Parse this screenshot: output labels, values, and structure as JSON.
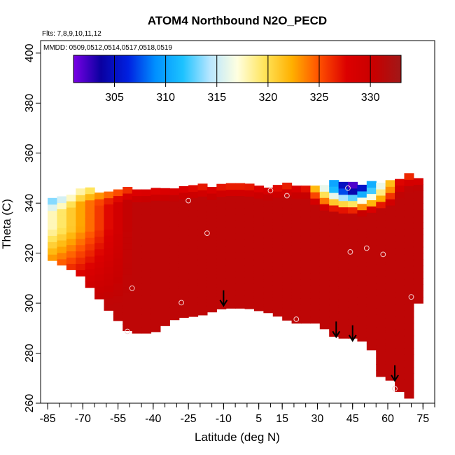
{
  "chart_data": {
    "type": "heatmap",
    "title": "ATOM4 Northbound N2O_PECD",
    "flights_label": "Flts: 7,8,9,10,11,12",
    "mmdd_label": "MMDD: 0509,0512,0514,0517,0518,0519",
    "xlabel": "Latitude (deg N)",
    "ylabel": "Theta (C)",
    "xlim": [
      -88,
      80
    ],
    "ylim": [
      260,
      405
    ],
    "x_ticks": [
      "-85",
      "-70",
      "-55",
      "-40",
      "-25",
      "-10",
      "5",
      "15",
      "30",
      "45",
      "60",
      "75"
    ],
    "x_tick_values": [
      -85,
      -70,
      -55,
      -40,
      -25,
      -10,
      5,
      15,
      30,
      45,
      60,
      75
    ],
    "y_ticks": [
      "260",
      "280",
      "300",
      "320",
      "340",
      "360",
      "380",
      "400"
    ],
    "y_tick_values": [
      260,
      280,
      300,
      320,
      340,
      360,
      380,
      400
    ],
    "colorbar": {
      "range": [
        301,
        333
      ],
      "ticks": [
        "305",
        "310",
        "315",
        "320",
        "325",
        "330"
      ],
      "tick_values": [
        305,
        310,
        315,
        320,
        325,
        330
      ],
      "colors": [
        "#7a00e6",
        "#0a00a0",
        "#0020e0",
        "#0090ff",
        "#1cc2ff",
        "#b8e6ff",
        "#ffffe0",
        "#ffe45a",
        "#ffb000",
        "#ff5000",
        "#dc0000",
        "#c80000",
        "#a01818"
      ]
    },
    "field": {
      "base_value": 331,
      "top_curtain_lat": [
        -82,
        -70,
        -55,
        -40,
        -25,
        -10,
        5,
        15,
        30,
        45,
        60,
        71
      ],
      "top_curtain_theta": [
        340,
        344,
        344,
        345,
        346,
        346,
        346,
        346,
        347,
        347,
        348,
        350
      ],
      "bottom_curtain_lat": [
        -85,
        -72,
        -58,
        -50,
        -40,
        -30,
        -20,
        -10,
        0,
        10,
        20,
        30,
        38,
        45,
        52,
        58,
        63,
        66,
        70,
        72
      ],
      "bottom_curtain_theta": [
        318,
        312,
        296,
        288,
        288,
        294,
        295,
        298,
        298,
        296,
        292,
        292,
        286,
        286,
        284,
        268,
        270,
        262,
        262,
        300
      ]
    },
    "sample_points": [
      {
        "lat": -51,
        "theta": 288.7
      },
      {
        "lat": -49,
        "theta": 306
      },
      {
        "lat": -28,
        "theta": 300.2
      },
      {
        "lat": -25,
        "theta": 341
      },
      {
        "lat": -17,
        "theta": 328
      },
      {
        "lat": 10,
        "theta": 345
      },
      {
        "lat": 17,
        "theta": 343
      },
      {
        "lat": 21,
        "theta": 293.6
      },
      {
        "lat": 43,
        "theta": 346
      },
      {
        "lat": 44,
        "theta": 320.5
      },
      {
        "lat": 51,
        "theta": 322
      },
      {
        "lat": 58,
        "theta": 319.5
      },
      {
        "lat": 70,
        "theta": 302.5
      },
      {
        "lat": 63,
        "theta": 265.8
      }
    ],
    "arrows": [
      {
        "lat": -10,
        "theta": 299
      },
      {
        "lat": 38,
        "theta": 286.5
      },
      {
        "lat": 45,
        "theta": 285
      },
      {
        "lat": 63,
        "theta": 269
      }
    ]
  }
}
